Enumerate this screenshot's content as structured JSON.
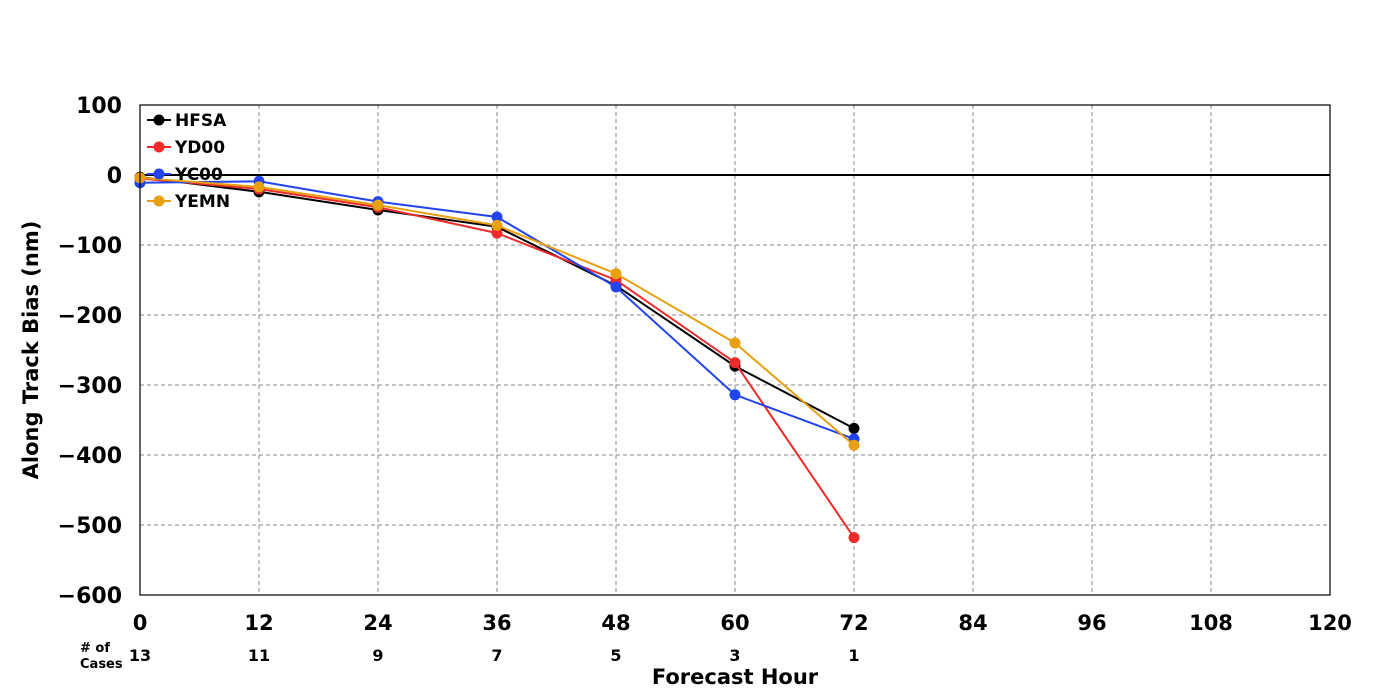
{
  "chart_data": {
    "type": "line",
    "title": "",
    "xlabel": "Forecast Hour",
    "ylabel": "Along Track Bias (nm)",
    "xlim": [
      0,
      120
    ],
    "ylim": [
      -600,
      100
    ],
    "x_ticks": [
      0,
      12,
      24,
      36,
      48,
      60,
      72,
      84,
      96,
      108,
      120
    ],
    "x_tick_labels": [
      "0",
      "12",
      "24",
      "36",
      "48",
      "60",
      "72",
      "84",
      "96",
      "108",
      "120"
    ],
    "y_ticks": [
      100,
      0,
      -100,
      -200,
      -300,
      -400,
      -500,
      -600
    ],
    "y_tick_labels": [
      "100",
      "0",
      "−100",
      "−200",
      "−300",
      "−400",
      "−500",
      "−600"
    ],
    "grid": true,
    "zero_line": true,
    "legend_position": "top-left",
    "cases_label_line1": "# of",
    "cases_label_line2": "Cases",
    "cases": [
      {
        "x": 0,
        "count": "13"
      },
      {
        "x": 12,
        "count": "11"
      },
      {
        "x": 24,
        "count": "9"
      },
      {
        "x": 36,
        "count": "7"
      },
      {
        "x": 48,
        "count": "5"
      },
      {
        "x": 60,
        "count": "3"
      },
      {
        "x": 72,
        "count": "1"
      }
    ],
    "x": [
      0,
      12,
      24,
      36,
      48,
      60,
      72
    ],
    "series": [
      {
        "name": "HFSA",
        "color": "#000000",
        "values": [
          -3,
          -24,
          -50,
          -74,
          -158,
          -273,
          -362
        ]
      },
      {
        "name": "YD00",
        "color": "#ee2a2a",
        "values": [
          -5,
          -20,
          -46,
          -83,
          -150,
          -268,
          -518
        ]
      },
      {
        "name": "YC00",
        "color": "#2244ee",
        "values": [
          -11,
          -9,
          -38,
          -60,
          -160,
          -314,
          -377
        ]
      },
      {
        "name": "YEMN",
        "color": "#e8a010",
        "values": [
          -4,
          -17,
          -43,
          -72,
          -141,
          -240,
          -386
        ]
      }
    ]
  }
}
